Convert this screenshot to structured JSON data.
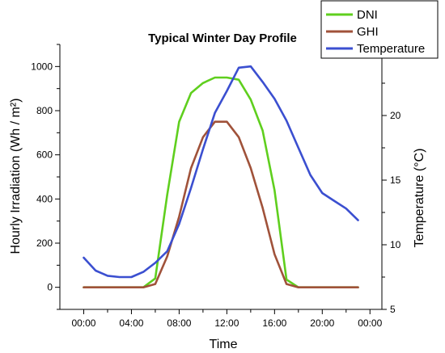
{
  "chart_data": {
    "type": "line",
    "title": "Typical Winter Day Profile",
    "xlabel": "Time",
    "ylabel_left": "Hourly Irradiation (Wh / m²)",
    "ylabel_right": "Temperature (°C)",
    "x_hours": [
      0,
      1,
      2,
      3,
      4,
      5,
      6,
      7,
      8,
      9,
      10,
      11,
      12,
      13,
      14,
      15,
      16,
      17,
      18,
      19,
      20,
      21,
      22,
      23
    ],
    "xlim": [
      -2,
      25
    ],
    "x_ticks": [
      {
        "hour": 0,
        "label": "00:00"
      },
      {
        "hour": 4,
        "label": "04:00"
      },
      {
        "hour": 8,
        "label": "08:00"
      },
      {
        "hour": 12,
        "label": "12:00"
      },
      {
        "hour": 16,
        "label": "16:00"
      },
      {
        "hour": 20,
        "label": "20:00"
      },
      {
        "hour": 24,
        "label": "00:00"
      }
    ],
    "ylim_left": [
      -100,
      1100
    ],
    "yticks_left": [
      0,
      200,
      400,
      600,
      800,
      1000
    ],
    "ylim_right": [
      5,
      25.5
    ],
    "yticks_right": [
      5,
      10,
      15,
      20
    ],
    "legend_position": "top-right",
    "series": [
      {
        "name": "DNI",
        "axis": "left",
        "color": "#5fcf1e",
        "values": [
          0,
          0,
          0,
          0,
          0,
          0,
          40,
          420,
          750,
          880,
          925,
          950,
          950,
          940,
          850,
          710,
          440,
          35,
          0,
          0,
          0,
          0,
          0,
          0
        ]
      },
      {
        "name": "GHI",
        "axis": "left",
        "color": "#a0523a",
        "values": [
          0,
          0,
          0,
          0,
          0,
          0,
          15,
          140,
          320,
          540,
          680,
          750,
          750,
          680,
          540,
          360,
          150,
          15,
          0,
          0,
          0,
          0,
          0,
          0
        ]
      },
      {
        "name": "Temperature",
        "axis": "right",
        "color": "#3b4fd0",
        "values": [
          9.0,
          8.0,
          7.6,
          7.5,
          7.5,
          7.9,
          8.6,
          9.5,
          11.6,
          14.4,
          17.4,
          20.2,
          21.9,
          23.7,
          23.8,
          22.6,
          21.3,
          19.6,
          17.5,
          15.4,
          14.0,
          13.4,
          12.8,
          11.9
        ]
      }
    ]
  }
}
